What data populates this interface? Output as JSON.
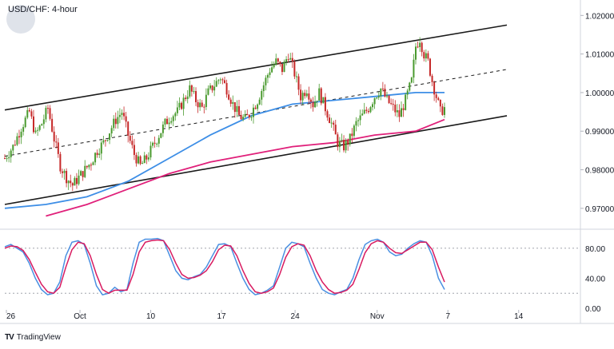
{
  "header": {
    "title": "USD/CHF: 4-hour"
  },
  "footer": {
    "brand": "TradingView",
    "icon": "tradingview-logo-icon"
  },
  "colors": {
    "candle_up": "#4a9a2f",
    "candle_down": "#c62828",
    "ma_fast": "#3d8ee6",
    "ma_slow": "#e0207a",
    "channel": "#1a1a1a",
    "stoch_k": "#4a90e2",
    "stoch_d": "#d81b60",
    "grid": "#e6e9ef"
  },
  "chart_data": [
    {
      "type": "candlestick",
      "title": "USD/CHF: 4-hour",
      "x_ticks": [
        "26",
        "Oct",
        "10",
        "17",
        "24",
        "Nov",
        "7",
        "14"
      ],
      "y_ticks": [
        "1.02000",
        "1.01000",
        "1.00000",
        "0.99000",
        "0.98000",
        "0.97000"
      ],
      "ylim": [
        0.965,
        1.024
      ],
      "grid": true,
      "series": [
        {
          "type": "candlestick",
          "close_path": [
            [
              0,
              0.983
            ],
            [
              4,
              0.986
            ],
            [
              8,
              0.991
            ],
            [
              12,
              0.995
            ],
            [
              15,
              0.989
            ],
            [
              18,
              0.992
            ],
            [
              21,
              0.996
            ],
            [
              24,
              0.988
            ],
            [
              27,
              0.981
            ],
            [
              30,
              0.978
            ],
            [
              33,
              0.976
            ],
            [
              36,
              0.978
            ],
            [
              39,
              0.98
            ],
            [
              42,
              0.982
            ],
            [
              45,
              0.985
            ],
            [
              48,
              0.987
            ],
            [
              51,
              0.99
            ],
            [
              54,
              0.993
            ],
            [
              57,
              0.995
            ],
            [
              60,
              0.989
            ],
            [
              63,
              0.984
            ],
            [
              66,
              0.981
            ],
            [
              69,
              0.983
            ],
            [
              72,
              0.986
            ],
            [
              75,
              0.989
            ],
            [
              78,
              0.992
            ],
            [
              81,
              0.994
            ],
            [
              84,
              0.995
            ],
            [
              87,
              0.998
            ],
            [
              90,
              1.001
            ],
            [
              93,
              0.998
            ],
            [
              96,
              0.996
            ],
            [
              99,
              1.0
            ],
            [
              102,
              1.002
            ],
            [
              105,
              1.004
            ],
            [
              108,
              1.001
            ],
            [
              111,
              0.997
            ],
            [
              114,
              0.994
            ],
            [
              117,
              0.993
            ],
            [
              120,
              0.995
            ],
            [
              123,
              0.998
            ],
            [
              126,
              1.002
            ],
            [
              129,
              1.006
            ],
            [
              132,
              1.008
            ],
            [
              135,
              1.006
            ],
            [
              138,
              1.01
            ],
            [
              141,
              1.005
            ],
            [
              144,
              0.999
            ],
            [
              147,
              1.001
            ],
            [
              150,
              0.997
            ],
            [
              153,
              1.0
            ],
            [
              156,
              0.996
            ],
            [
              159,
              0.992
            ],
            [
              162,
              0.987
            ],
            [
              165,
              0.986
            ],
            [
              168,
              0.988
            ],
            [
              171,
              0.992
            ],
            [
              174,
              0.994
            ],
            [
              177,
              0.996
            ],
            [
              180,
              0.999
            ],
            [
              183,
              1.001
            ],
            [
              186,
              0.998
            ],
            [
              189,
              0.996
            ],
            [
              192,
              0.994
            ],
            [
              195,
              0.998
            ],
            [
              198,
              1.003
            ],
            [
              200,
              1.012
            ],
            [
              202,
              1.014
            ],
            [
              204,
              1.01
            ],
            [
              206,
              1.008
            ],
            [
              208,
              1.003
            ],
            [
              210,
              0.999
            ],
            [
              212,
              0.995
            ],
            [
              214,
              0.996
            ]
          ],
          "range_approx": [
            0.974,
            1.015
          ]
        },
        {
          "name": "",
          "type": "line",
          "color_key": "ma_fast",
          "points": [
            [
              0,
              0.97
            ],
            [
              20,
              0.971
            ],
            [
              40,
              0.973
            ],
            [
              60,
              0.977
            ],
            [
              80,
              0.983
            ],
            [
              100,
              0.989
            ],
            [
              120,
              0.994
            ],
            [
              140,
              0.997
            ],
            [
              160,
              0.998
            ],
            [
              180,
              0.999
            ],
            [
              200,
              1.0
            ],
            [
              214,
              1.0
            ]
          ]
        },
        {
          "name": "",
          "type": "line",
          "color_key": "ma_slow",
          "points": [
            [
              20,
              0.968
            ],
            [
              40,
              0.971
            ],
            [
              60,
              0.975
            ],
            [
              80,
              0.979
            ],
            [
              100,
              0.982
            ],
            [
              120,
              0.984
            ],
            [
              140,
              0.986
            ],
            [
              160,
              0.987
            ],
            [
              180,
              0.989
            ],
            [
              200,
              0.99
            ],
            [
              214,
              0.993
            ]
          ]
        },
        {
          "name": "",
          "type": "line",
          "color_key": "channel",
          "points": [
            [
              0,
              0.9955
            ],
            [
              214,
              1.0175
            ]
          ]
        },
        {
          "name": "",
          "type": "line",
          "color_key": "channel",
          "points": [
            [
              0,
              0.971
            ],
            [
              214,
              0.994
            ]
          ]
        },
        {
          "name": "",
          "type": "line",
          "dashed": true,
          "color_key": "channel",
          "points": [
            [
              0,
              0.9835
            ],
            [
              214,
              1.006
            ]
          ]
        }
      ]
    },
    {
      "type": "line",
      "title": "",
      "y_ticks": [
        "80.00",
        "40.00",
        "0.00"
      ],
      "ylim": [
        0,
        100
      ],
      "reference_lines": [
        80,
        20
      ],
      "series": [
        {
          "name": "",
          "color_key": "stoch_k",
          "values": [
            82,
            85,
            80,
            75,
            60,
            40,
            25,
            18,
            20,
            35,
            70,
            88,
            90,
            85,
            60,
            30,
            18,
            20,
            28,
            22,
            25,
            60,
            88,
            92,
            92,
            93,
            90,
            70,
            50,
            40,
            38,
            42,
            45,
            55,
            70,
            85,
            86,
            82,
            60,
            40,
            25,
            18,
            20,
            24,
            30,
            55,
            80,
            88,
            86,
            82,
            60,
            40,
            25,
            20,
            18,
            22,
            25,
            40,
            65,
            85,
            90,
            92,
            88,
            75,
            70,
            72,
            80,
            86,
            90,
            88,
            70,
            40,
            25
          ]
        },
        {
          "name": "",
          "color_key": "stoch_d",
          "values": [
            80,
            83,
            82,
            77,
            65,
            48,
            32,
            22,
            20,
            28,
            55,
            78,
            88,
            86,
            70,
            45,
            25,
            20,
            24,
            24,
            24,
            45,
            75,
            88,
            90,
            91,
            90,
            78,
            60,
            45,
            40,
            41,
            44,
            50,
            62,
            78,
            84,
            83,
            70,
            50,
            33,
            22,
            20,
            22,
            27,
            45,
            68,
            82,
            86,
            84,
            70,
            50,
            35,
            25,
            20,
            21,
            24,
            32,
            52,
            74,
            86,
            90,
            88,
            80,
            74,
            73,
            78,
            83,
            88,
            88,
            78,
            55,
            35
          ]
        }
      ]
    }
  ]
}
